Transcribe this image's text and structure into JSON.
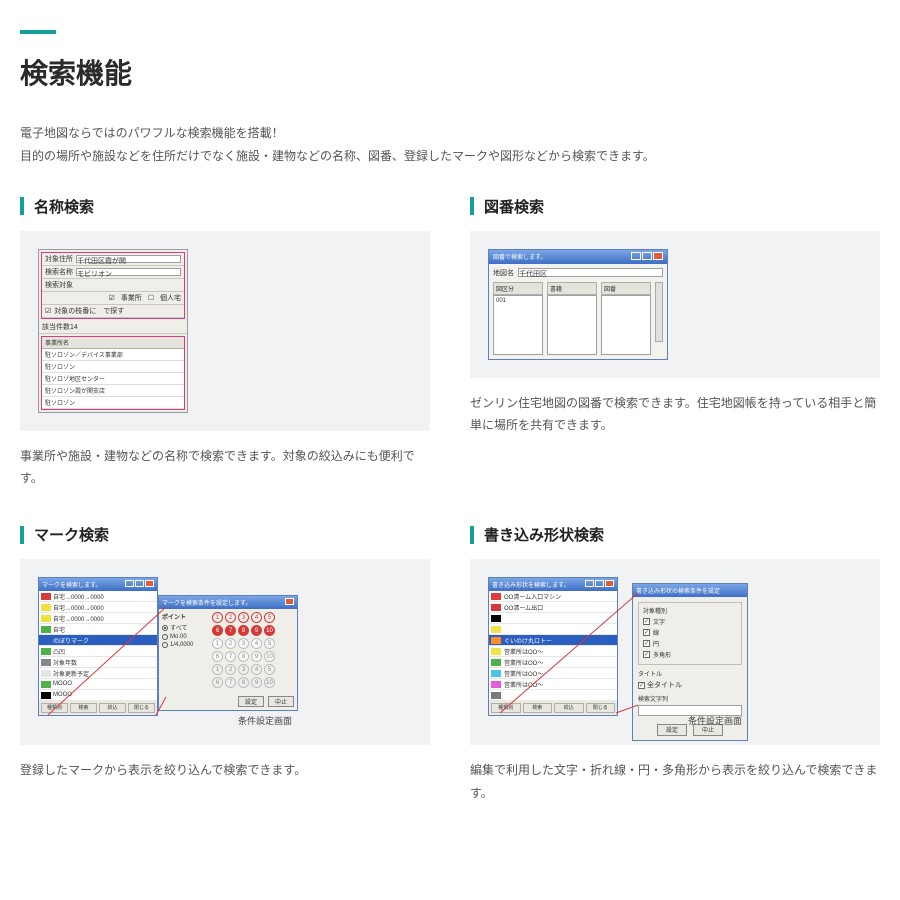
{
  "accent_color": "#14a098",
  "page": {
    "title": "検索機能",
    "intro_line1": "電子地図ならではのパワフルな検索機能を搭載！",
    "intro_line2": "目的の場所や施設などを住所だけでなく施設・建物などの名称、図番、登録したマークや図形などから検索できます。"
  },
  "sections": {
    "name_search": {
      "heading": "名称検索",
      "caption": "事業所や施設・建物などの名称で検索できます。対象の絞込みにも便利です。",
      "thumb": {
        "rows": {
          "r1_lbl": "対象住所",
          "r1_val": "千代田区霞が関",
          "r2_lbl": "検索名称",
          "r2_val": "モビリオン",
          "r3_lbl": "検索対象",
          "r3_opt1": "事業所",
          "r3_opt2": "個人宅",
          "r4_chk": "対象の枝番に　で探す",
          "r5_lbl": "該当件数14"
        },
        "list_header": "事業所名",
        "list_items": [
          "駐ソロゾン／デバイス事業部",
          "駐ソロゾン",
          "駐ソロゾ地区センター",
          "駐ソロゾン霞が関支店",
          "駐ソロゾン"
        ]
      }
    },
    "zuban_search": {
      "heading": "図番検索",
      "caption": "ゼンリン住宅地図の図番で検索できます。住宅地図帳を持っている相手と簡単に場所を共有できます。",
      "thumb": {
        "titlebar": "図番で検索します。",
        "addr_lbl": "地図名",
        "addr_val": "千代田区",
        "col1": "図区分",
        "col2": "書籍",
        "col3": "図番",
        "item": "001"
      }
    },
    "mark_search": {
      "heading": "マーク検索",
      "caption": "登録したマークから表示を絞り込んで検索できます。",
      "thumb": {
        "win1_title": "マークを検索します。",
        "items": [
          {
            "label": "自宅→0000→0000",
            "color": "#d83a3a"
          },
          {
            "label": "自宅→0000→0000",
            "color": "#f2e13c"
          },
          {
            "label": "自宅→0000→0000",
            "color": "#f2e13c"
          },
          {
            "label": "自宅",
            "color": "#4fb04a"
          },
          {
            "label": "のぼりマーク",
            "color": "#2a5fbf",
            "selected": true
          },
          {
            "label": "凸凹",
            "color": "#4fb04a"
          },
          {
            "label": "対象年数",
            "color": "#888888"
          },
          {
            "label": "対象更新予定",
            "color": "#e6e6e6"
          },
          {
            "label": "MOOO",
            "color": "#4fb04a"
          },
          {
            "label": "MOOO",
            "color": "#000000"
          }
        ],
        "footer": [
          "種類別",
          "検索",
          "絞込",
          "閉じる"
        ],
        "win2_title": "マークを検索条件を設定します。",
        "win2_opts_hdr": "ポイント",
        "win2_opts": [
          "すべて",
          "Mo.00",
          "1/4,0000"
        ],
        "win2_nums": [
          [
            "1",
            "2",
            "3",
            "4",
            "5"
          ],
          [
            "6",
            "7",
            "8",
            "9",
            "10"
          ],
          [
            "1",
            "2",
            "3",
            "4",
            "5"
          ],
          [
            "6",
            "7",
            "8",
            "9",
            "10"
          ],
          [
            "1",
            "2",
            "3",
            "4",
            "5"
          ],
          [
            "6",
            "7",
            "8",
            "9",
            "10"
          ]
        ],
        "win2_btns": [
          "設定",
          "中止"
        ],
        "caption_label": "条件設定画面"
      }
    },
    "shape_search": {
      "heading": "書き込み形状検索",
      "caption": "編集で利用した文字・折れ線・円・多角形から表示を絞り込んで検索できます。",
      "thumb": {
        "win1_title": "書き込み形状を検索します。",
        "items": [
          {
            "label": "OO清ーム入口マシン",
            "color": "#e33a3a"
          },
          {
            "label": "OO清ーム出口",
            "color": "#d83a3a"
          },
          {
            "label": "　",
            "color": "#000000"
          },
          {
            "label": "　",
            "color": "#f4e24a"
          },
          {
            "label": "ぐいのけ丸ロトー",
            "color": "#ff8a2a",
            "selected": true
          },
          {
            "label": "営業所はOO〜",
            "color": "#f4e24a"
          },
          {
            "label": "営業所はOO〜",
            "color": "#4fb04a"
          },
          {
            "label": "営業所はOO〜",
            "color": "#49c6e6"
          },
          {
            "label": "営業所はOO〜",
            "color": "#e65bd8"
          },
          {
            "label": "　",
            "color": "#7a7a7a"
          }
        ],
        "footer": [
          "種類別",
          "検索",
          "絞込",
          "閉じる"
        ],
        "win2_title": "書き込み形状の検索条件を設定",
        "grp1_title": "対象種別",
        "grp1_checks": [
          "文字",
          "線",
          "円",
          "多角形"
        ],
        "grp2_title": "タイトル",
        "grp2_check": "全タイトル",
        "fld_lbl": "検索文字列",
        "win2_btns": [
          "設定",
          "中止"
        ],
        "caption_label": "条件設定画面"
      }
    }
  }
}
